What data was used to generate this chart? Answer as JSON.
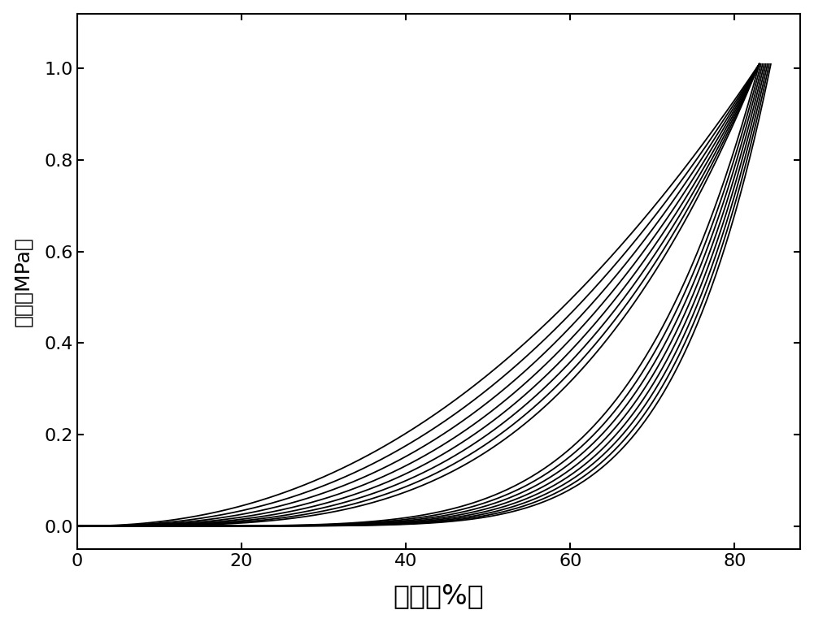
{
  "title": "",
  "xlabel": "应变（%）",
  "ylabel": "应力（MPa）",
  "xlim": [
    0,
    88
  ],
  "ylim": [
    -0.05,
    1.12
  ],
  "xticks": [
    0,
    20,
    40,
    60,
    80
  ],
  "yticks": [
    0.0,
    0.2,
    0.4,
    0.6,
    0.8,
    1.0
  ],
  "background_color": "#ffffff",
  "line_color": "#000000",
  "n_curves": 8,
  "max_strain": 83.0,
  "max_stress": 1.01,
  "xlabel_fontsize": 24,
  "ylabel_fontsize": 18,
  "tick_fontsize": 16,
  "linewidth": 1.3,
  "load_exponents": [
    5.5,
    5.8,
    6.1,
    6.4,
    6.7,
    7.0,
    7.3,
    7.6
  ],
  "unload_exponents": [
    2.2,
    2.4,
    2.6,
    2.8,
    3.0,
    3.2,
    3.4,
    3.6
  ],
  "load_x_offsets": [
    0.0,
    0.2,
    0.4,
    0.6,
    0.8,
    1.0,
    1.2,
    1.4
  ],
  "unload_x_offsets": [
    0.0,
    0.15,
    0.3,
    0.45,
    0.6,
    0.75,
    0.9,
    1.05
  ]
}
